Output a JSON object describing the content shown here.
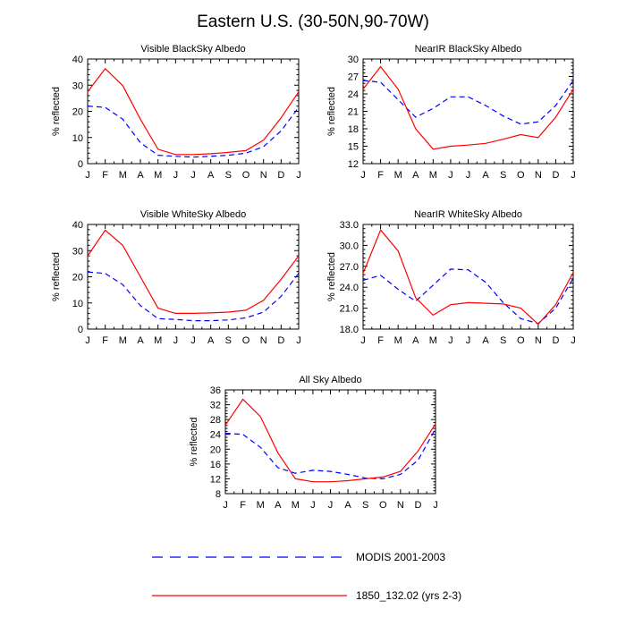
{
  "figure_title": "Eastern U.S. (30-50N,90-70W)",
  "legend": [
    {
      "label": "MODIS 2001-2003",
      "color": "#0000ff",
      "dash": true
    },
    {
      "label": "1850_132.02 (yrs 2-3)",
      "color": "#ff0000",
      "dash": false
    }
  ],
  "chart_data": [
    {
      "type": "line",
      "title": "Visible BlackSky Albedo",
      "xlabel": "",
      "ylabel": "% reflected",
      "categories": [
        "J",
        "F",
        "M",
        "A",
        "M",
        "J",
        "J",
        "A",
        "S",
        "O",
        "N",
        "D",
        "J"
      ],
      "ylim": [
        0,
        40
      ],
      "yticks": [
        0,
        10,
        20,
        30,
        40
      ],
      "ytick_labels": [
        "0",
        "10",
        "20",
        "30",
        "40"
      ],
      "series": [
        {
          "name": "MODIS 2001-2003",
          "values": [
            22,
            21.5,
            17,
            8,
            3.2,
            2.8,
            2.5,
            2.8,
            3.2,
            4,
            6.5,
            12.5,
            21.5
          ]
        },
        {
          "name": "1850_132.02 (yrs 2-3)",
          "values": [
            27.5,
            36.3,
            29.8,
            17,
            5.5,
            3.5,
            3.5,
            3.8,
            4.3,
            5,
            9,
            17.5,
            27.5
          ]
        }
      ]
    },
    {
      "type": "line",
      "title": "NearIR BlackSky Albedo",
      "xlabel": "",
      "ylabel": "% reflected",
      "categories": [
        "J",
        "F",
        "M",
        "A",
        "M",
        "J",
        "J",
        "A",
        "S",
        "O",
        "N",
        "D",
        "J"
      ],
      "ylim": [
        12,
        30
      ],
      "yticks": [
        12,
        15,
        18,
        21,
        24,
        27,
        30
      ],
      "ytick_labels": [
        "12",
        "15",
        "18",
        "21",
        "24",
        "27",
        "30"
      ],
      "series": [
        {
          "name": "MODIS 2001-2003",
          "values": [
            26.3,
            26,
            23,
            20,
            21.5,
            23.5,
            23.5,
            22,
            20.2,
            18.8,
            19.2,
            22,
            26.3
          ]
        },
        {
          "name": "1850_132.02 (yrs 2-3)",
          "values": [
            24.8,
            28.7,
            24.8,
            18,
            14.5,
            15,
            15.2,
            15.5,
            16.2,
            17,
            16.5,
            20,
            24.8
          ]
        }
      ]
    },
    {
      "type": "line",
      "title": "Visible WhiteSky Albedo",
      "xlabel": "",
      "ylabel": "% reflected",
      "categories": [
        "J",
        "F",
        "M",
        "A",
        "M",
        "J",
        "J",
        "A",
        "S",
        "O",
        "N",
        "D",
        "J"
      ],
      "ylim": [
        0,
        40
      ],
      "yticks": [
        0,
        10,
        20,
        30,
        40
      ],
      "ytick_labels": [
        "0",
        "10",
        "20",
        "30",
        "40"
      ],
      "series": [
        {
          "name": "MODIS 2001-2003",
          "values": [
            21.8,
            21.3,
            17,
            9,
            4,
            3.7,
            3.2,
            3.2,
            3.5,
            4.3,
            6.5,
            12.5,
            21.3
          ]
        },
        {
          "name": "1850_132.02 (yrs 2-3)",
          "values": [
            28,
            37.8,
            32,
            20,
            8,
            6,
            6,
            6.2,
            6.5,
            7.2,
            11,
            19,
            28
          ]
        }
      ]
    },
    {
      "type": "line",
      "title": "NearIR WhiteSky Albedo",
      "xlabel": "",
      "ylabel": "% reflected",
      "categories": [
        "J",
        "F",
        "M",
        "A",
        "M",
        "J",
        "J",
        "A",
        "S",
        "O",
        "N",
        "D",
        "J"
      ],
      "ylim": [
        18,
        33
      ],
      "yticks": [
        18,
        21,
        24,
        27,
        30,
        33
      ],
      "ytick_labels": [
        "18.0",
        "21.0",
        "24.0",
        "27.0",
        "30.0",
        "33.0"
      ],
      "series": [
        {
          "name": "MODIS 2001-2003",
          "values": [
            25,
            25.7,
            23.7,
            22,
            24.3,
            26.6,
            26.5,
            24.7,
            21.8,
            19.5,
            18.8,
            21,
            25.3
          ]
        },
        {
          "name": "1850_132.02 (yrs 2-3)",
          "values": [
            26,
            32.2,
            29.2,
            22.5,
            20,
            21.5,
            21.8,
            21.7,
            21.6,
            21,
            18.7,
            21.5,
            26.1
          ]
        }
      ]
    },
    {
      "type": "line",
      "title": "All Sky Albedo",
      "xlabel": "",
      "ylabel": "% reflected",
      "categories": [
        "J",
        "F",
        "M",
        "A",
        "M",
        "J",
        "J",
        "A",
        "S",
        "O",
        "N",
        "D",
        "J"
      ],
      "ylim": [
        8,
        36
      ],
      "yticks": [
        8,
        12,
        16,
        20,
        24,
        28,
        32,
        36
      ],
      "ytick_labels": [
        "8",
        "12",
        "16",
        "20",
        "24",
        "28",
        "32",
        "36"
      ],
      "series": [
        {
          "name": "MODIS 2001-2003",
          "values": [
            24.3,
            24,
            20.5,
            15,
            13.5,
            14.3,
            14,
            13.2,
            12.2,
            12,
            13.2,
            17,
            25.5
          ]
        },
        {
          "name": "1850_132.02 (yrs 2-3)",
          "values": [
            26.5,
            33.5,
            28.8,
            19,
            12,
            11.2,
            11.2,
            11.5,
            12,
            12.5,
            14,
            19.5,
            26.8
          ]
        }
      ]
    }
  ]
}
